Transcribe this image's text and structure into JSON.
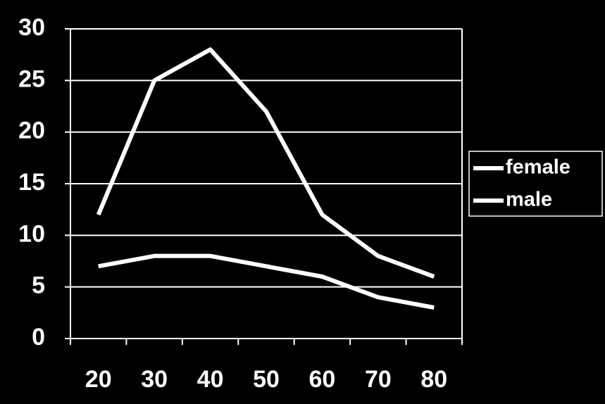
{
  "chart_data": {
    "type": "line",
    "categories": [
      "20",
      "30",
      "40",
      "50",
      "60",
      "70",
      "80"
    ],
    "series": [
      {
        "name": "female",
        "color": "#ffffff",
        "values": [
          12,
          25,
          28,
          22,
          12,
          8,
          6
        ]
      },
      {
        "name": "male",
        "color": "#ffffff",
        "values": [
          7,
          8,
          8,
          7,
          6,
          4,
          3
        ]
      }
    ],
    "ylim": [
      0,
      30
    ],
    "yticks": [
      0,
      5,
      10,
      15,
      20,
      25,
      30
    ],
    "grid": true,
    "legend": "right"
  }
}
